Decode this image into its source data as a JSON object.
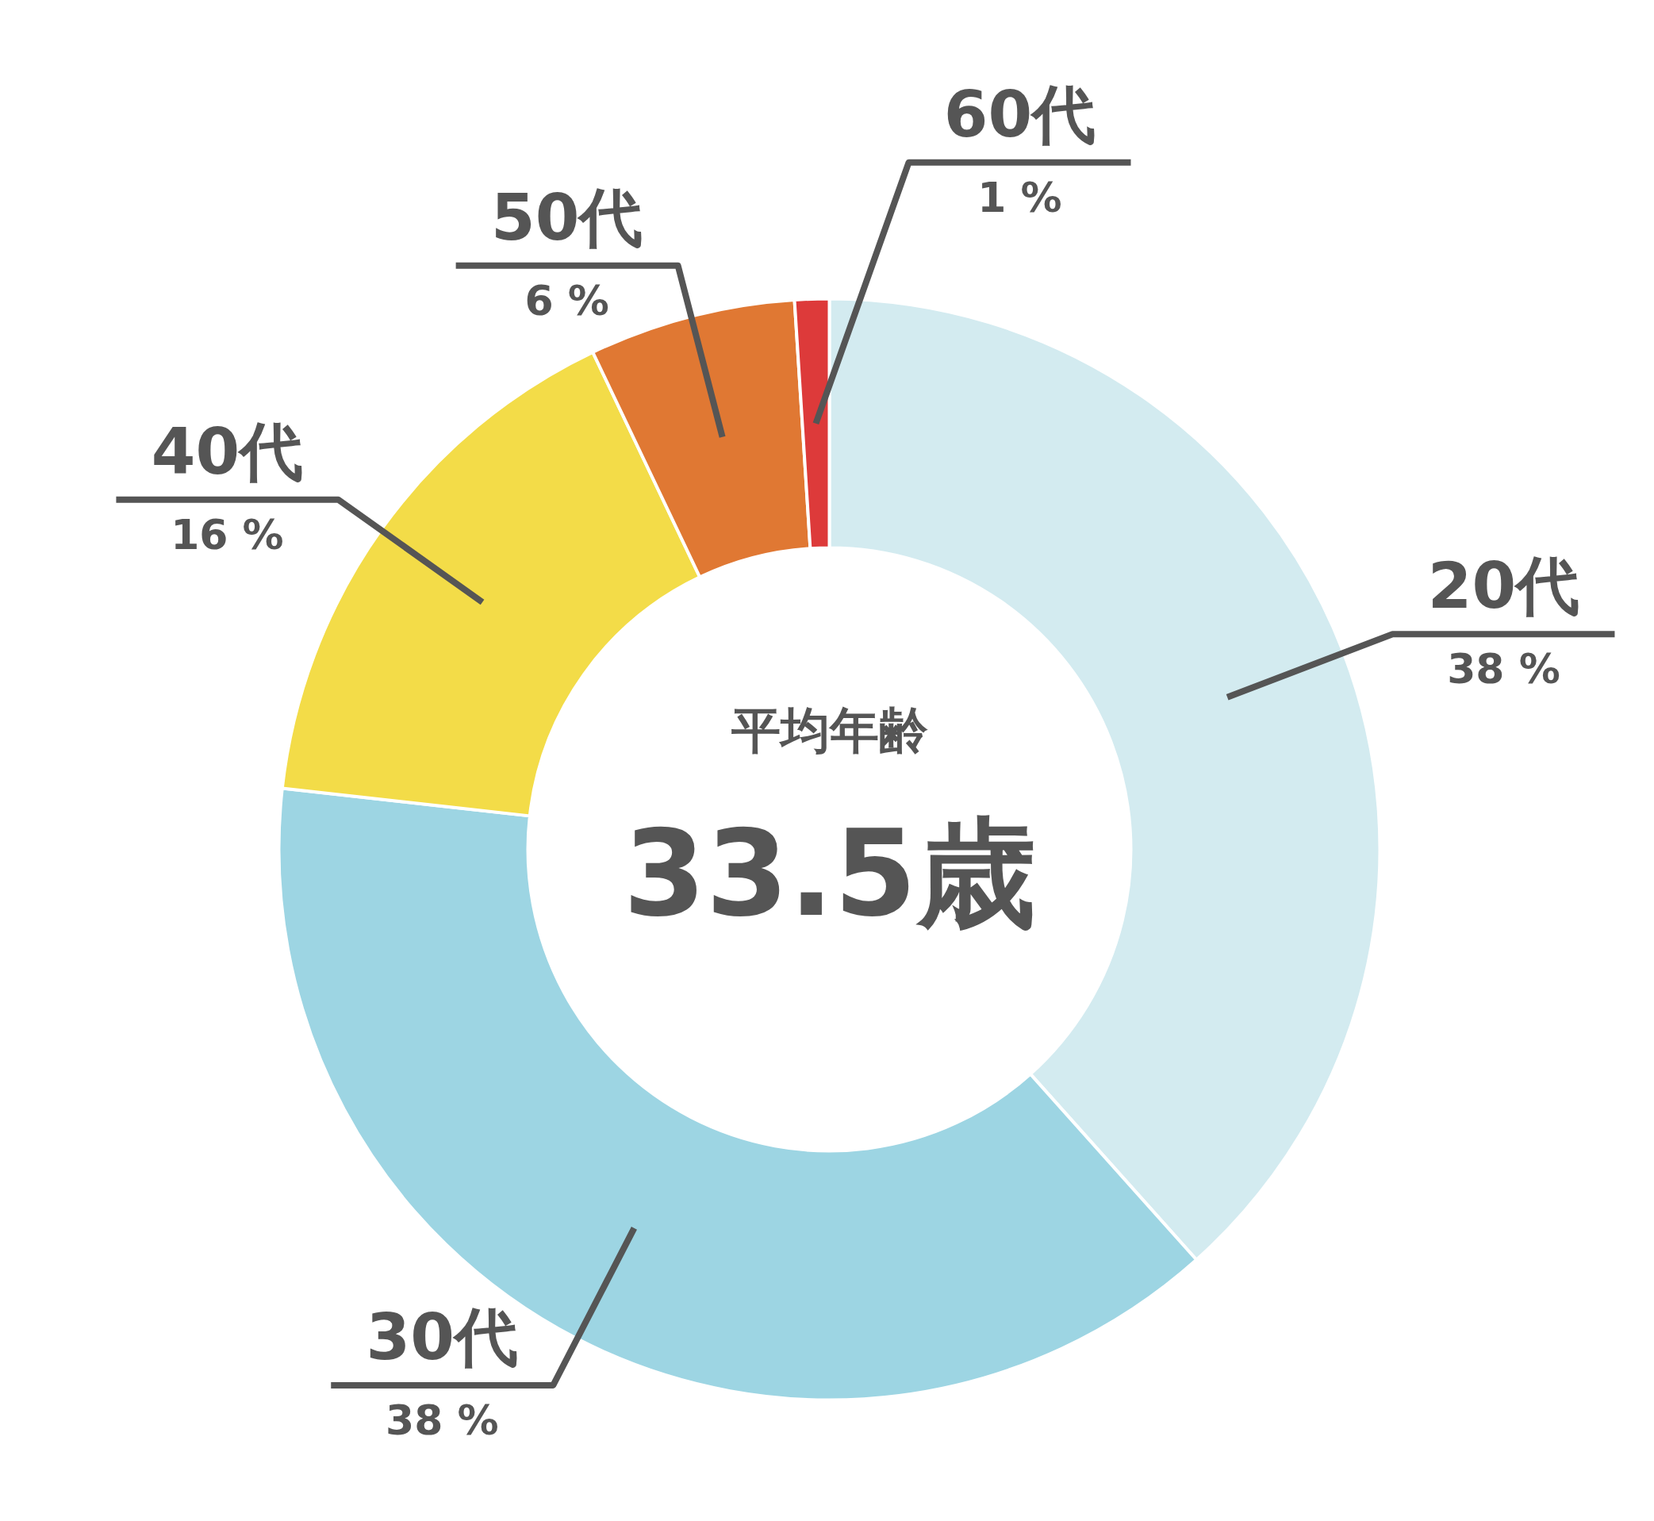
{
  "chart_data": {
    "type": "donut",
    "categories": [
      "20代",
      "30代",
      "40代",
      "50代",
      "60代"
    ],
    "values": [
      38,
      38,
      16,
      6,
      1
    ],
    "colors": [
      "#d3ebf0",
      "#9dd5e3",
      "#f3dc48",
      "#e07833",
      "#dd3a3a"
    ],
    "value_labels": [
      "38 %",
      "38 %",
      "16 %",
      "6 %",
      "1 %"
    ],
    "annotations": [
      "平均年齢",
      "33.5歳"
    ]
  }
}
